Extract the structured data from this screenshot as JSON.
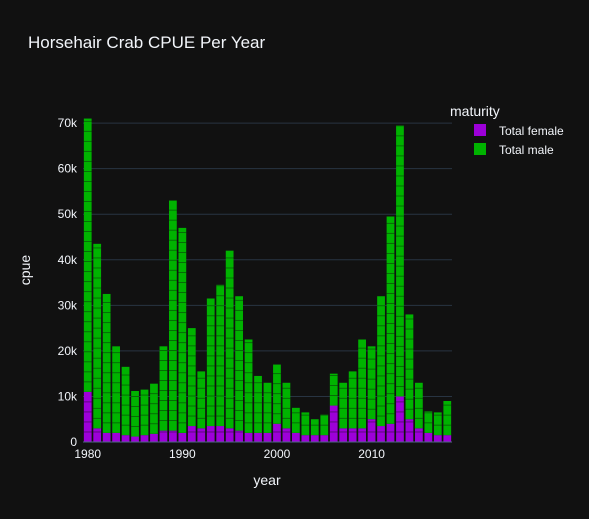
{
  "chart_data": {
    "type": "bar",
    "barmode": "stack",
    "title": "Horsehair Crab CPUE Per Year",
    "xlabel": "year",
    "ylabel": "cpue",
    "xlim": [
      1979.5,
      2018.5
    ],
    "ylim": [
      0,
      72000
    ],
    "x_ticks": [
      1980,
      1990,
      2000,
      2010
    ],
    "x_tick_labels": [
      "1980",
      "1990",
      "2000",
      "2010"
    ],
    "y_ticks": [
      0,
      10000,
      20000,
      30000,
      40000,
      50000,
      60000,
      70000
    ],
    "y_tick_labels": [
      "0",
      "10k",
      "20k",
      "30k",
      "40k",
      "50k",
      "60k",
      "70k"
    ],
    "grid": true,
    "legend": {
      "title": "maturity",
      "placement": "top-right"
    },
    "background": "#111111",
    "series": [
      {
        "name": "Total female",
        "color": "#9d00d9",
        "x": [
          1980,
          1981,
          1982,
          1983,
          1984,
          1985,
          1986,
          1987,
          1988,
          1989,
          1990,
          1991,
          1992,
          1993,
          1994,
          1995,
          1996,
          1997,
          1998,
          1999,
          2000,
          2001,
          2002,
          2003,
          2004,
          2005,
          2006,
          2007,
          2008,
          2009,
          2010,
          2011,
          2012,
          2013,
          2014,
          2015,
          2016,
          2017,
          2018
        ],
        "values": [
          11000,
          3000,
          2000,
          2000,
          1500,
          1200,
          1500,
          1800,
          2500,
          2500,
          2000,
          3500,
          3000,
          3500,
          3500,
          3000,
          2500,
          2000,
          2000,
          2000,
          4000,
          3000,
          2000,
          1500,
          1500,
          1500,
          8000,
          3000,
          3000,
          3000,
          5000,
          3500,
          4000,
          10000,
          5000,
          3000,
          2000,
          1500,
          1500
        ]
      },
      {
        "name": "Total male",
        "color": "#00b300",
        "x": [
          1980,
          1981,
          1982,
          1983,
          1984,
          1985,
          1986,
          1987,
          1988,
          1989,
          1990,
          1991,
          1992,
          1993,
          1994,
          1995,
          1996,
          1997,
          1998,
          1999,
          2000,
          2001,
          2002,
          2003,
          2004,
          2005,
          2006,
          2007,
          2008,
          2009,
          2010,
          2011,
          2012,
          2013,
          2014,
          2015,
          2016,
          2017,
          2018
        ],
        "values": [
          60000,
          40500,
          30500,
          19000,
          15000,
          10000,
          10000,
          11000,
          18500,
          50500,
          45000,
          21500,
          12500,
          28000,
          31000,
          39000,
          29500,
          20500,
          12500,
          11000,
          13000,
          10000,
          5500,
          5000,
          3500,
          4500,
          7000,
          10000,
          12500,
          19500,
          16000,
          28500,
          45500,
          59500,
          23000,
          10000,
          4700,
          5000,
          7500
        ]
      }
    ]
  }
}
